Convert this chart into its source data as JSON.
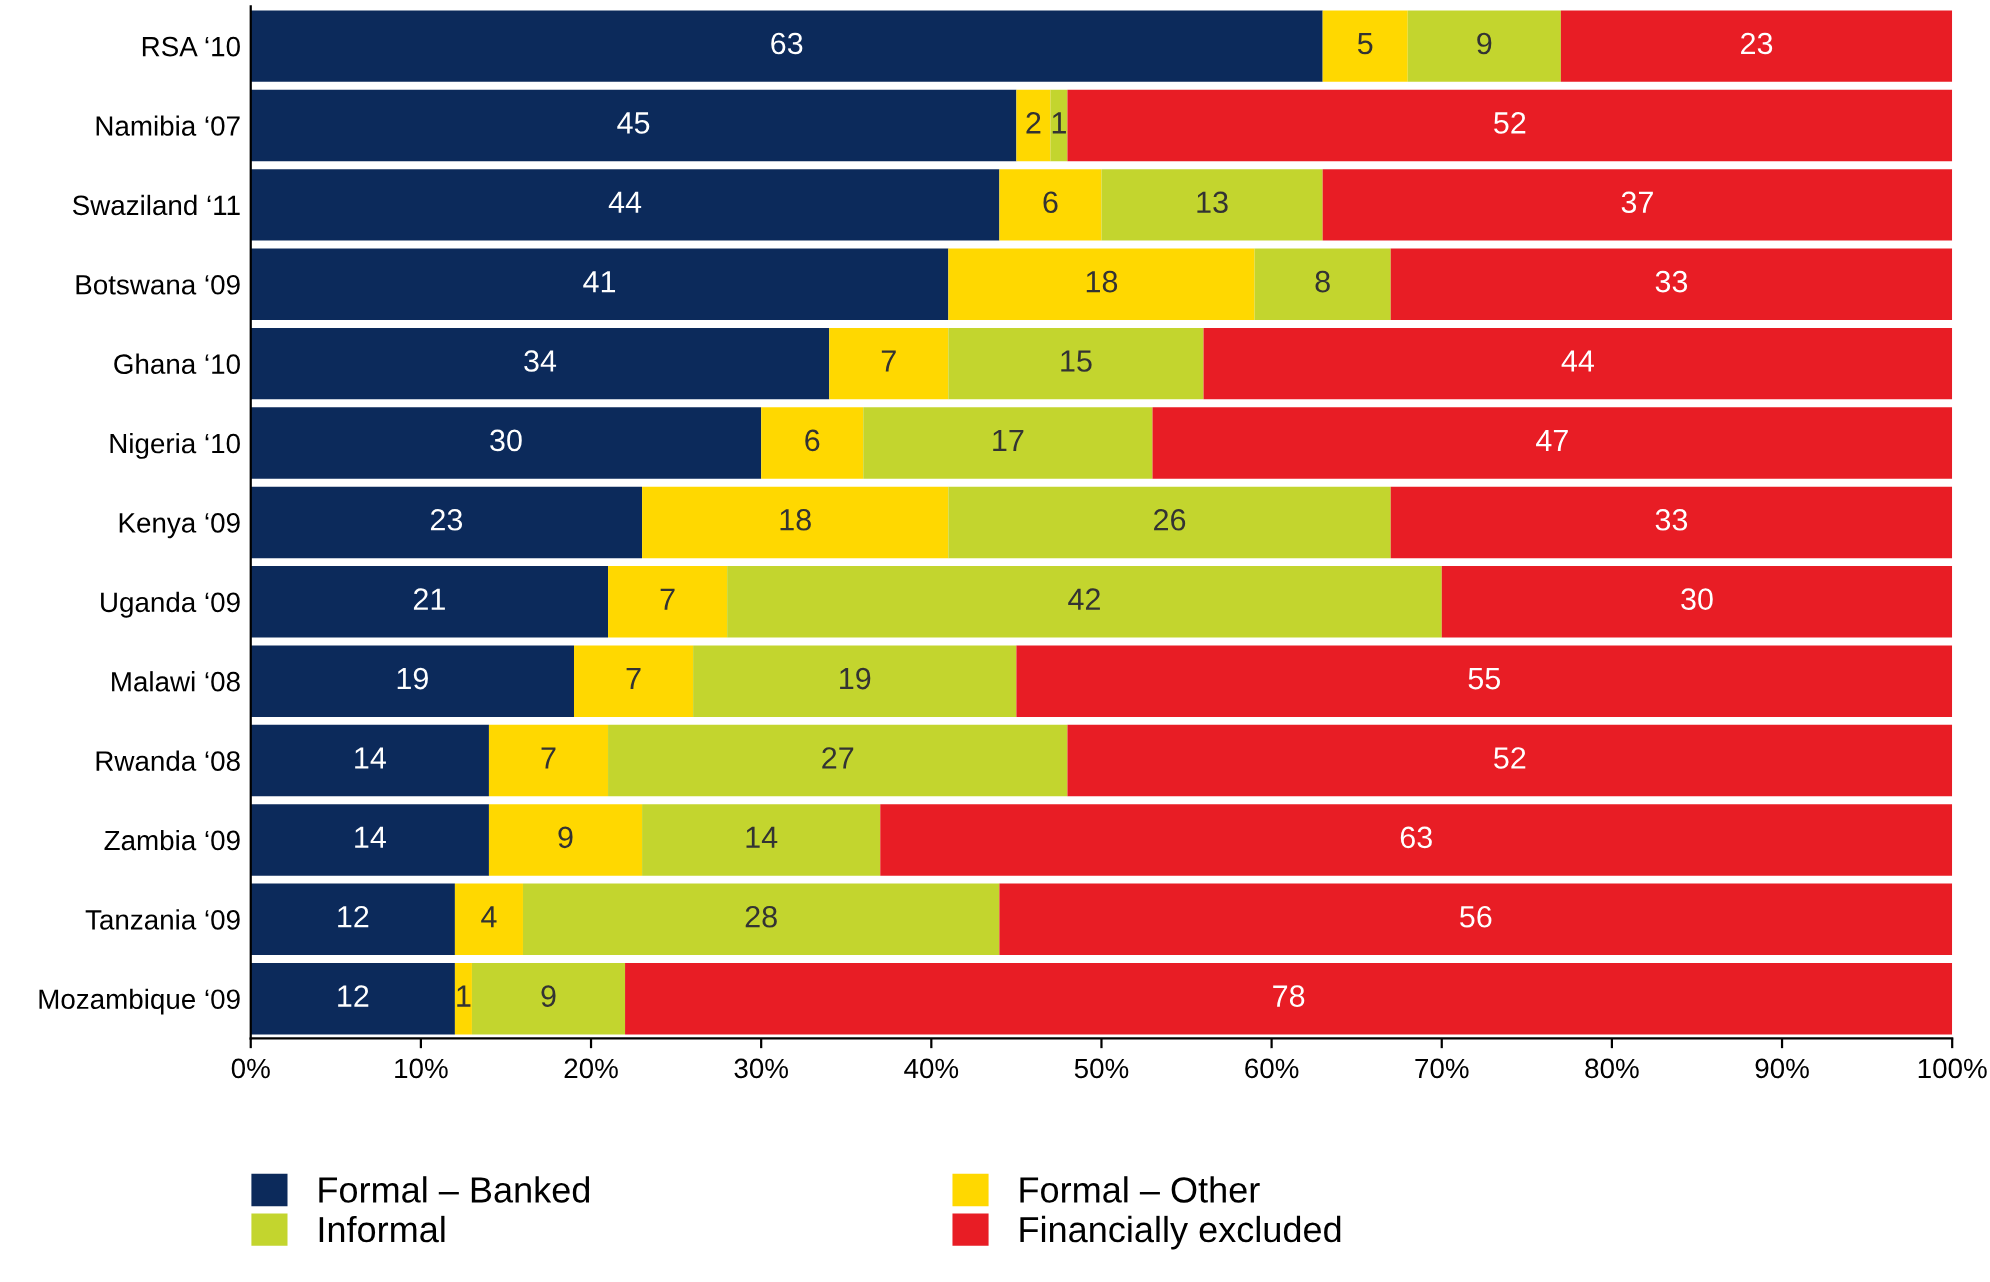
{
  "chart_data": {
    "type": "bar",
    "orientation": "horizontal",
    "stacked": true,
    "data_labels": true,
    "legend": "bottom",
    "grid": false,
    "categories": [
      "RSA ‘10",
      "Namibia ‘07",
      "Swaziland ‘11",
      "Botswana ‘09",
      "Ghana ‘10",
      "Nigeria ‘10",
      "Kenya ‘09",
      "Uganda ‘09",
      "Malawi ‘08",
      "Rwanda ‘08",
      "Zambia ‘09",
      "Tanzania ‘09",
      "Mozambique ‘09"
    ],
    "series": [
      {
        "name": "Formal – Banked",
        "color": "#0c2a5b",
        "values": [
          63,
          45,
          44,
          41,
          34,
          30,
          23,
          21,
          19,
          14,
          14,
          12,
          12
        ]
      },
      {
        "name": "Formal – Other",
        "color": "#ffd800",
        "values": [
          5,
          2,
          6,
          18,
          7,
          6,
          18,
          7,
          7,
          7,
          9,
          4,
          1
        ]
      },
      {
        "name": "Informal",
        "color": "#c3d52e",
        "values": [
          9,
          1,
          13,
          8,
          15,
          17,
          26,
          42,
          19,
          27,
          14,
          28,
          9
        ]
      },
      {
        "name": "Financially excluded",
        "color": "#e81d25",
        "values": [
          23,
          52,
          37,
          33,
          44,
          47,
          33,
          30,
          55,
          52,
          63,
          56,
          78
        ]
      }
    ],
    "xlim": [
      0,
      100
    ],
    "xticks": [
      {
        "value": 0,
        "label": "0%"
      },
      {
        "value": 10,
        "label": "10%"
      },
      {
        "value": 20,
        "label": "20%"
      },
      {
        "value": 30,
        "label": "30%"
      },
      {
        "value": 40,
        "label": "40%"
      },
      {
        "value": 50,
        "label": "50%"
      },
      {
        "value": 60,
        "label": "60%"
      },
      {
        "value": 70,
        "label": "70%"
      },
      {
        "value": 80,
        "label": "80%"
      },
      {
        "value": 90,
        "label": "90%"
      },
      {
        "value": 100,
        "label": "100%"
      }
    ]
  }
}
